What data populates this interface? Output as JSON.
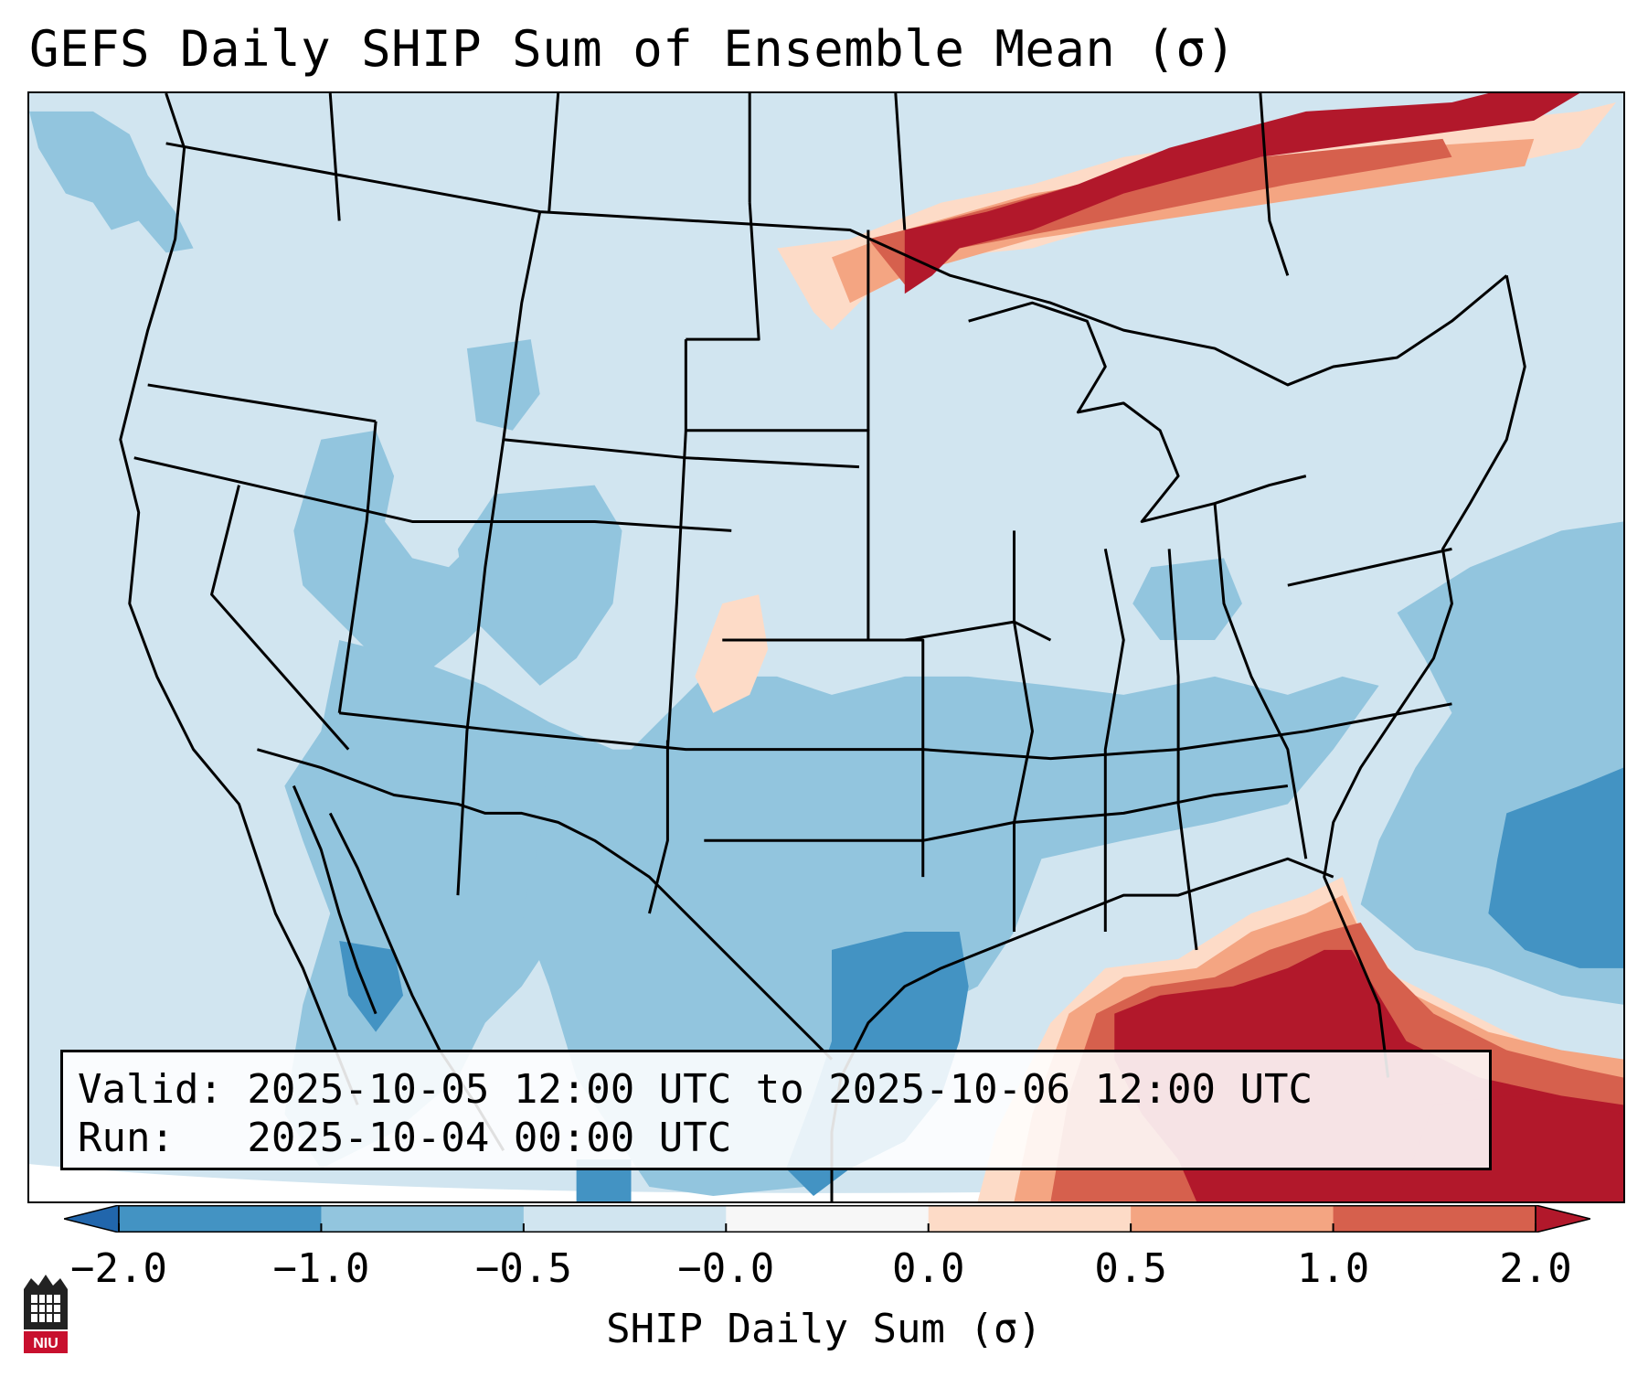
{
  "title": "GEFS Daily SHIP Sum of Ensemble Mean (σ)",
  "info": {
    "valid_line": "Valid: 2025-10-05 12:00 UTC to 2025-10-06 12:00 UTC",
    "run_line": "Run:   2025-10-04 00:00 UTC"
  },
  "colorbar": {
    "label": "SHIP Daily Sum (σ)",
    "ticks": [
      "−2.0",
      "−1.0",
      "−0.5",
      "−0.0",
      "0.0",
      "0.5",
      "1.0",
      "2.0"
    ],
    "colors": [
      "#4393c3",
      "#92c5de",
      "#d1e5f0",
      "#f7f7f7",
      "#fddbc7",
      "#f4a582",
      "#d6604d"
    ],
    "under_color": "#2166ac",
    "over_color": "#b2182b"
  },
  "map": {
    "background_color": "#d1e5f0",
    "regions": [
      {
        "name": "pacific-northwest-anomaly",
        "category": "-1.0 to -0.5",
        "color": "#92c5de"
      },
      {
        "name": "southwest-anomaly",
        "category": "-1.0 to -0.5",
        "color": "#92c5de"
      },
      {
        "name": "texas-gulf-anomaly",
        "category": "-1.0 to -0.5",
        "color": "#92c5de"
      },
      {
        "name": "western-gulf-anomaly",
        "category": "-2.0 to -1.0",
        "color": "#4393c3"
      },
      {
        "name": "western-atlantic-anomaly",
        "category": "-2.0 to -1.0",
        "color": "#4393c3"
      },
      {
        "name": "eastern-gulf-florida-anomaly",
        "category": "> 2.0",
        "color": "#b2182b"
      },
      {
        "name": "southern-canada-anomaly",
        "category": "> 2.0",
        "color": "#b2182b"
      },
      {
        "name": "kansas-oklahoma-anomaly",
        "category": "0.0 to 0.5",
        "color": "#fddbc7"
      }
    ]
  },
  "logo": {
    "text": "NIU"
  }
}
